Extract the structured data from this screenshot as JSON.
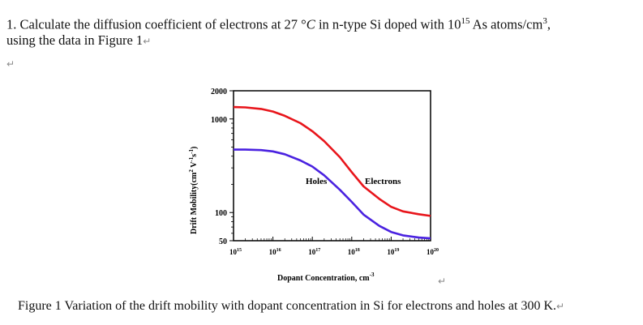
{
  "question": {
    "line1_prefix": "1. Calculate the diffusion coefficient of electrons at 27 °",
    "line1_temp_unit": "C",
    "line1_mid": " in n-type Si doped with 10",
    "line1_exp": "15",
    "line1_mid2": " As atoms/cm",
    "line1_exp2": "3",
    "line1_end": ",",
    "line2": "using the data in Figure 1"
  },
  "return_mark": "↵",
  "chart_data": {
    "type": "line",
    "xlabel": "Dopant Concentration, cm",
    "xlabel_exp": "-3",
    "ylabel": "Drift Mobility(cm",
    "ylabel_mid": " V",
    "ylabel_mid2": "s",
    "ylabel_end": ")",
    "x_scale": "log",
    "y_scale": "log",
    "xlim": [
      1000000000000000.0,
      1e+20
    ],
    "ylim": [
      50,
      2000
    ],
    "x_ticks": [
      "10",
      "10",
      "10",
      "10",
      "10",
      "10"
    ],
    "x_tick_exps": [
      "15",
      "16",
      "17",
      "18",
      "19",
      "20"
    ],
    "y_ticks": [
      "2000",
      "1000",
      "100",
      "50"
    ],
    "series": [
      {
        "name": "Electrons",
        "color": "#e8151b",
        "x": [
          1000000000000000.0,
          2000000000000000.0,
          5000000000000000.0,
          1e+16,
          2e+16,
          5e+16,
          1e+17,
          2e+17,
          5e+17,
          1e+18,
          2e+18,
          5e+18,
          1e+19,
          2e+19,
          5e+19,
          1e+20
        ],
        "y": [
          1340,
          1330,
          1280,
          1200,
          1080,
          900,
          740,
          580,
          390,
          270,
          190,
          140,
          115,
          103,
          96,
          92
        ]
      },
      {
        "name": "Holes",
        "color": "#4a22e0",
        "x": [
          1000000000000000.0,
          2000000000000000.0,
          5000000000000000.0,
          1e+16,
          2e+16,
          5e+16,
          1e+17,
          2e+17,
          5e+17,
          1e+18,
          2e+18,
          5e+18,
          1e+19,
          2e+19,
          5e+19,
          1e+20
        ],
        "y": [
          470,
          470,
          465,
          450,
          420,
          360,
          310,
          250,
          175,
          130,
          95,
          72,
          62,
          57,
          54,
          53
        ]
      }
    ],
    "labels": {
      "holes": "Holes",
      "electrons": "Electrons"
    }
  },
  "caption": "Figure 1 Variation of the drift mobility with dopant concentration in Si for electrons and holes at 300 K."
}
